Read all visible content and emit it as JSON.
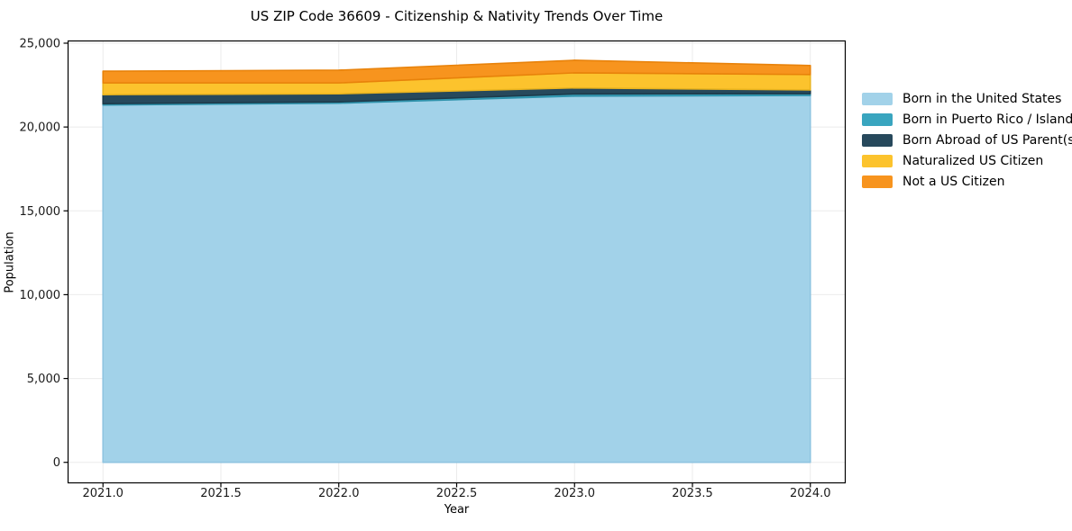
{
  "chart_data": {
    "type": "area",
    "stacked": true,
    "title": "US ZIP Code 36609 - Citizenship & Nativity Trends Over Time",
    "xlabel": "Year",
    "ylabel": "Population",
    "x": [
      2021,
      2022,
      2023,
      2024
    ],
    "series": [
      {
        "name": "Born in the United States",
        "color": "#a2d2e9",
        "edge": "#8fc4e0",
        "values": [
          21310,
          21420,
          21840,
          21880
        ]
      },
      {
        "name": "Born in Puerto Rico / Islands",
        "color": "#39a5bf",
        "edge": "#2f93ac",
        "values": [
          80,
          80,
          130,
          110
        ]
      },
      {
        "name": "Born Abroad of US Parent(s)",
        "color": "#27495c",
        "edge": "#1d3a4a",
        "values": [
          540,
          480,
          360,
          220
        ]
      },
      {
        "name": "Naturalized US Citizen",
        "color": "#fcc32d",
        "edge": "#eab41f",
        "values": [
          700,
          650,
          900,
          920
        ]
      },
      {
        "name": "Not a US Citizen",
        "color": "#f7941e",
        "edge": "#e8820a",
        "values": [
          700,
          760,
          750,
          540
        ]
      }
    ],
    "xticks": {
      "values": [
        2021.0,
        2021.5,
        2022.0,
        2022.5,
        2023.0,
        2023.5,
        2024.0
      ],
      "labels": [
        "2021.0",
        "2021.5",
        "2022.0",
        "2022.5",
        "2023.0",
        "2023.5",
        "2024.0"
      ]
    },
    "yticks": {
      "values": [
        0,
        5000,
        10000,
        15000,
        20000,
        25000
      ],
      "labels": [
        "0",
        "5,000",
        "10,000",
        "15,000",
        "20,000",
        "25,000"
      ]
    },
    "xlim": [
      2020.85,
      2024.15
    ],
    "ylim": [
      -1250,
      25160
    ],
    "grid": true,
    "legend_position": "right",
    "colors": {
      "grid": "#ebebeb",
      "spine": "#000000",
      "tick_text": "#1a1a1a",
      "background": "#ffffff"
    }
  }
}
